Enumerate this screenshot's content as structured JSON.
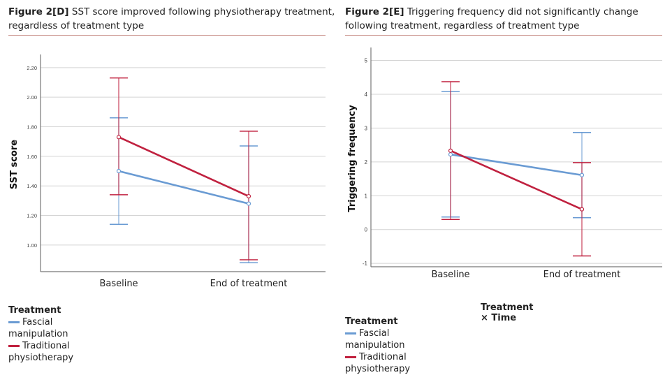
{
  "colors": {
    "fascial": "#6a9bd3",
    "traditional": "#c0213f",
    "grid": "#d4d4d4",
    "axis": "#777777",
    "divider": "#c9908a"
  },
  "chart_data": [
    {
      "type": "line",
      "title_prefix": "Figure 2[D]",
      "title": "SST score improved following physiotherapy treatment, regardless of treatment type",
      "xlabel": "",
      "ylabel": "SST score",
      "categories": [
        "Baseline",
        "End of treatment"
      ],
      "yticks": [
        "1.00",
        "1.20",
        "1.40",
        "1.60",
        "1.80",
        "2.00",
        "2.20"
      ],
      "ylim": [
        0.82,
        2.27
      ],
      "grid": true,
      "legend_title": "Treatment",
      "legend_placement": "bottom-left",
      "series": [
        {
          "name": "Fascial manipulation",
          "color": "#6a9bd3",
          "values": [
            1.5,
            1.28
          ],
          "ci_low": [
            1.14,
            0.88
          ],
          "ci_high": [
            1.86,
            1.67
          ]
        },
        {
          "name": "Traditional physiotherapy",
          "color": "#c0213f",
          "values": [
            1.73,
            1.33
          ],
          "ci_low": [
            1.34,
            0.9
          ],
          "ci_high": [
            2.13,
            1.77
          ]
        }
      ]
    },
    {
      "type": "line",
      "title_prefix": "Figure 2[E]",
      "title": "Triggering frequency did not significantly change following treatment, regardless of treatment type",
      "xlabel": "Treatment × Time",
      "ylabel": "Triggering frequency",
      "categories": [
        "Baseline",
        "End of treatment"
      ],
      "yticks": [
        "-1",
        "0",
        "1",
        "2",
        "3",
        "4",
        "5"
      ],
      "ylim": [
        -1.1,
        5.3
      ],
      "grid": true,
      "legend_title": "Treatment",
      "legend_placement": "bottom-left",
      "series": [
        {
          "name": "Fascial manipulation",
          "color": "#6a9bd3",
          "values": [
            2.22,
            1.61
          ],
          "ci_low": [
            0.37,
            0.35
          ],
          "ci_high": [
            4.08,
            2.87
          ]
        },
        {
          "name": "Traditional physiotherapy",
          "color": "#c0213f",
          "values": [
            2.33,
            0.6
          ],
          "ci_low": [
            0.3,
            -0.78
          ],
          "ci_high": [
            4.37,
            1.98
          ]
        }
      ]
    }
  ]
}
